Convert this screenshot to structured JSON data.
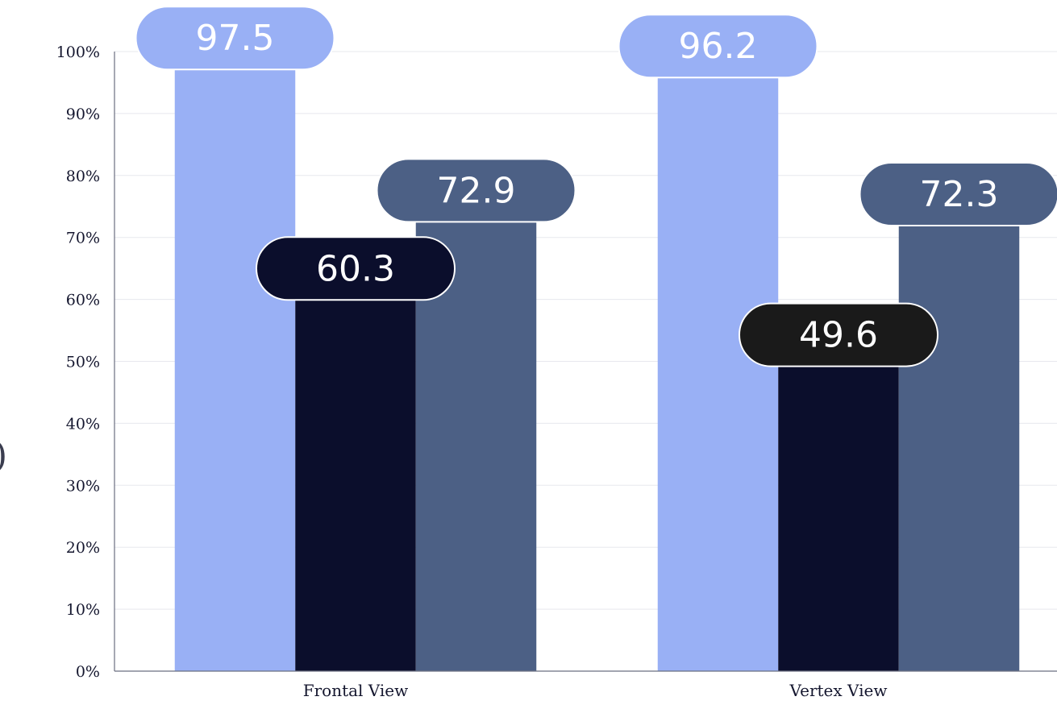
{
  "chart_data": {
    "type": "bar",
    "title": "",
    "xlabel": "",
    "ylabel": "",
    "ylim": [
      0,
      100
    ],
    "y_ticks": [
      "0%",
      "10%",
      "20%",
      "30%",
      "40%",
      "50%",
      "60%",
      "70%",
      "80%",
      "90%",
      "100%"
    ],
    "grid": true,
    "legend": "none",
    "categories": [
      "Frontal View",
      "Vertex View"
    ],
    "series": [
      {
        "values": [
          97.5,
          96.2
        ],
        "color": "#99b0f5",
        "label_text_color": "#ffffff"
      },
      {
        "values": [
          60.3,
          49.6
        ],
        "color": "#0b0e2c",
        "label_text_color": "#ffffff"
      },
      {
        "values": [
          72.9,
          72.3
        ],
        "color": "#4c6085",
        "label_text_color": "#ffffff"
      }
    ],
    "data_labels": [
      [
        "97.5",
        "96.2"
      ],
      [
        "60.3",
        "49.6"
      ],
      [
        "72.9",
        "72.3"
      ]
    ],
    "label_pill_colors": [
      [
        "#99b0f5",
        "#99b0f5"
      ],
      [
        "#0b0e2c",
        "#1a1a1a"
      ],
      [
        "#4c6085",
        "#4c6085"
      ]
    ],
    "cut_off_glyph": ")"
  }
}
